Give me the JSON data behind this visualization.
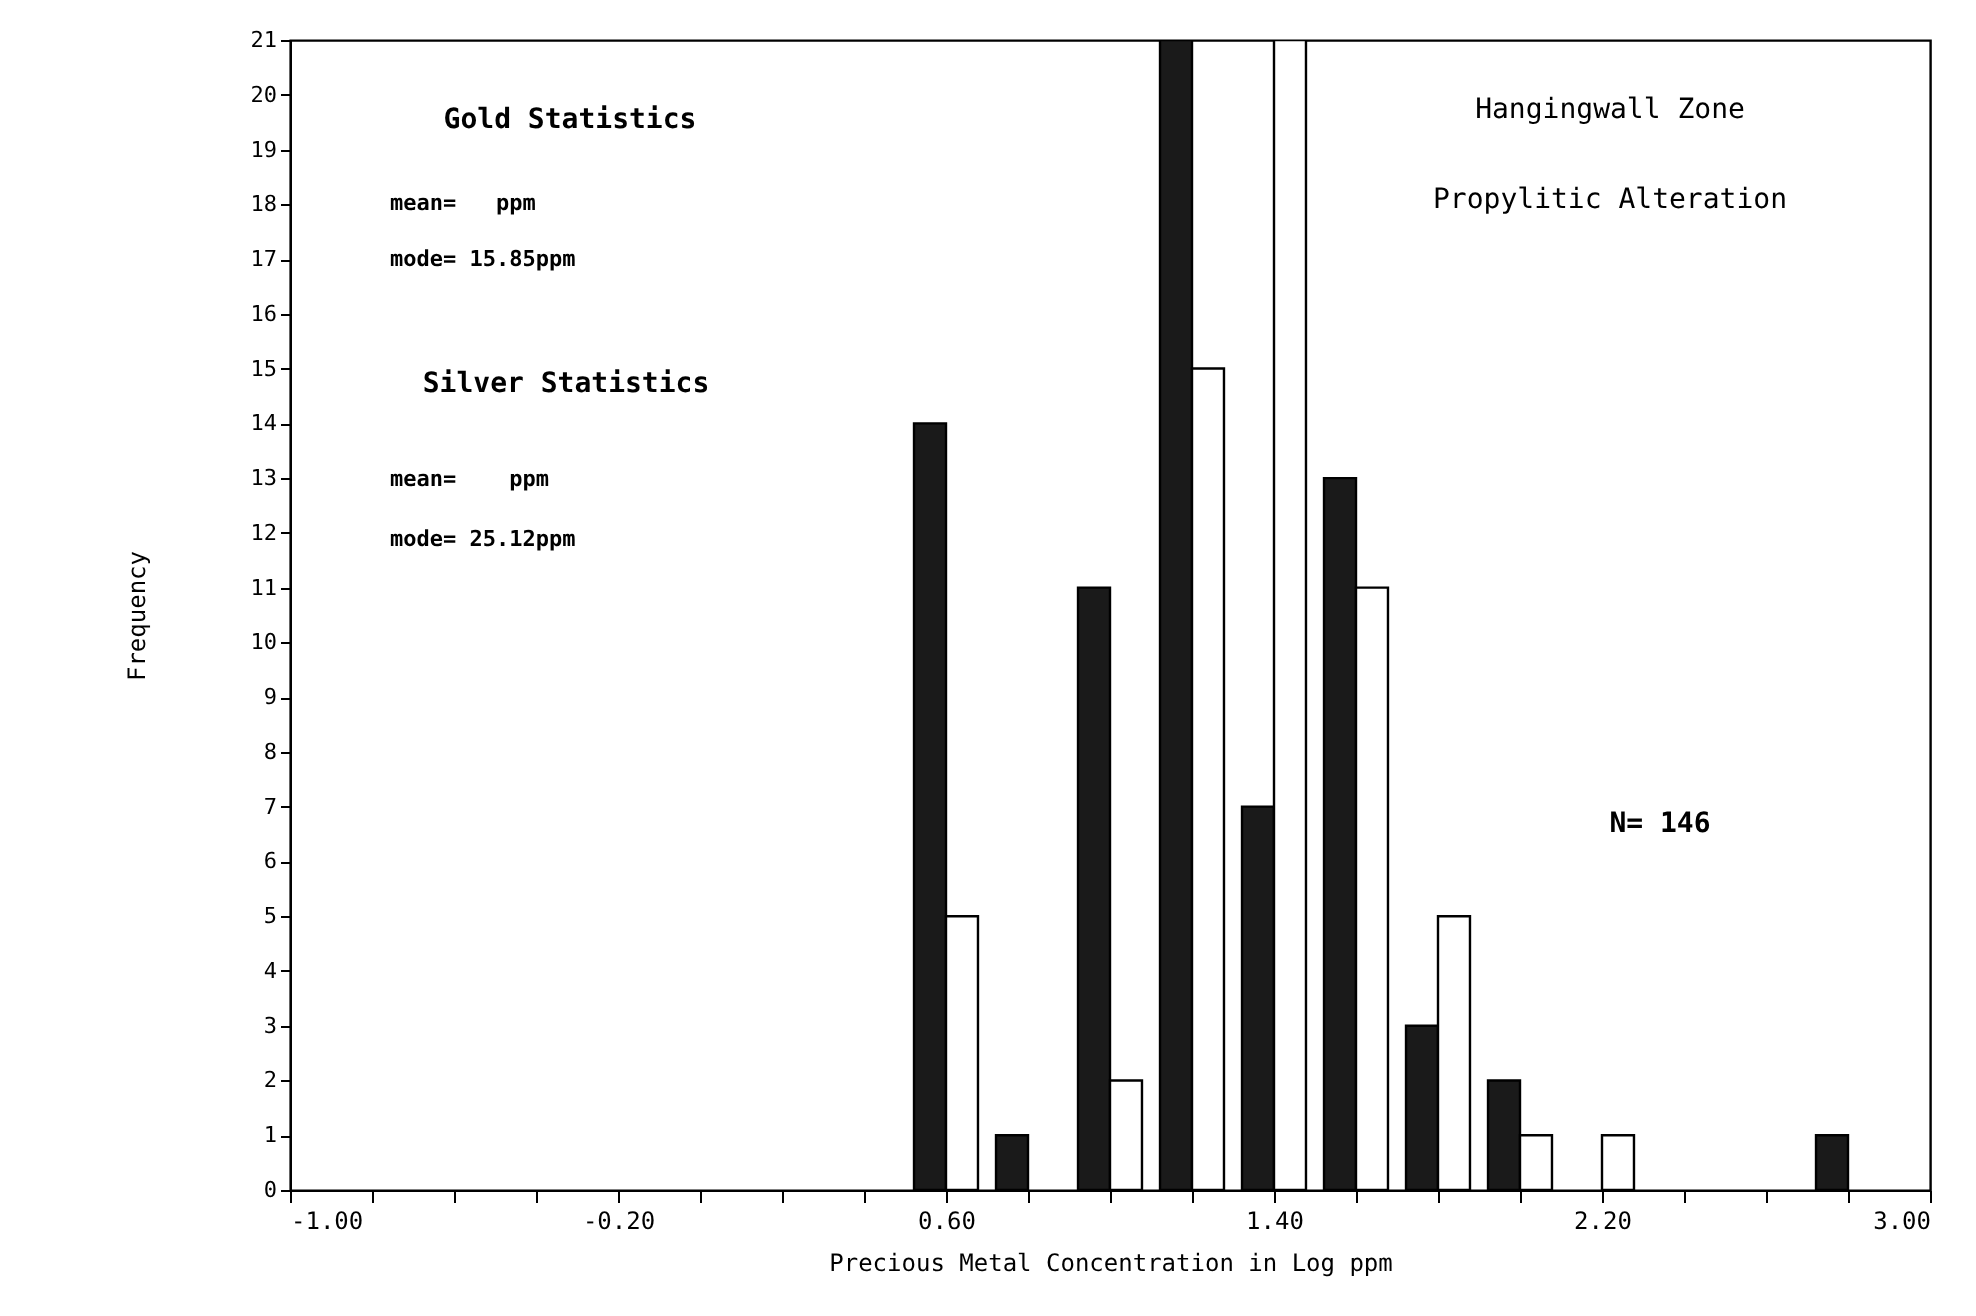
{
  "chart_data": {
    "type": "bar",
    "xlabel": "Precious Metal Concentration in Log ppm",
    "ylabel": "Frequency",
    "x": [
      0.6,
      0.8,
      1.0,
      1.2,
      1.4,
      1.6,
      1.8,
      2.0,
      2.2,
      2.8
    ],
    "series": [
      {
        "color": "#1a1a1a",
        "values": [
          14,
          1,
          11,
          21,
          7,
          13,
          3,
          2,
          null,
          1
        ]
      },
      {
        "color": "#ffffff",
        "values": [
          5,
          null,
          2,
          15,
          21,
          11,
          5,
          1,
          1,
          null
        ]
      }
    ],
    "xlim": [
      -1.0,
      3.0
    ],
    "xticks": [
      {
        "value": -1.0,
        "label": "-1.00"
      },
      {
        "value": -0.8,
        "label": null
      },
      {
        "value": -0.6,
        "label": null
      },
      {
        "value": -0.4,
        "label": null
      },
      {
        "value": -0.2,
        "label": "-0.20"
      },
      {
        "value": 0.0,
        "label": null
      },
      {
        "value": 0.2,
        "label": null
      },
      {
        "value": 0.4,
        "label": null
      },
      {
        "value": 0.6,
        "label": "0.60"
      },
      {
        "value": 0.8,
        "label": null
      },
      {
        "value": 1.0,
        "label": null
      },
      {
        "value": 1.2,
        "label": null
      },
      {
        "value": 1.4,
        "label": "1.40"
      },
      {
        "value": 1.6,
        "label": null
      },
      {
        "value": 1.8,
        "label": null
      },
      {
        "value": 2.0,
        "label": null
      },
      {
        "value": 2.2,
        "label": "2.20"
      },
      {
        "value": 2.4,
        "label": null
      },
      {
        "value": 2.6,
        "label": null
      },
      {
        "value": 2.8,
        "label": null
      },
      {
        "value": 3.0,
        "label": "3.00"
      }
    ],
    "ylim": [
      0,
      21
    ],
    "yticks": [
      0,
      1,
      2,
      3,
      4,
      5,
      6,
      7,
      8,
      9,
      10,
      11,
      12,
      13,
      14,
      15,
      16,
      17,
      18,
      19,
      20,
      21
    ],
    "grid": false,
    "annotations": [
      "Gold Statistics",
      "mean=   ppm",
      "mode= 15.85ppm",
      "Silver Statistics",
      "mean=    ppm",
      "mode= 25.12ppm",
      "Hangingwall Zone",
      "Propylitic Alteration",
      "N= 146"
    ]
  }
}
